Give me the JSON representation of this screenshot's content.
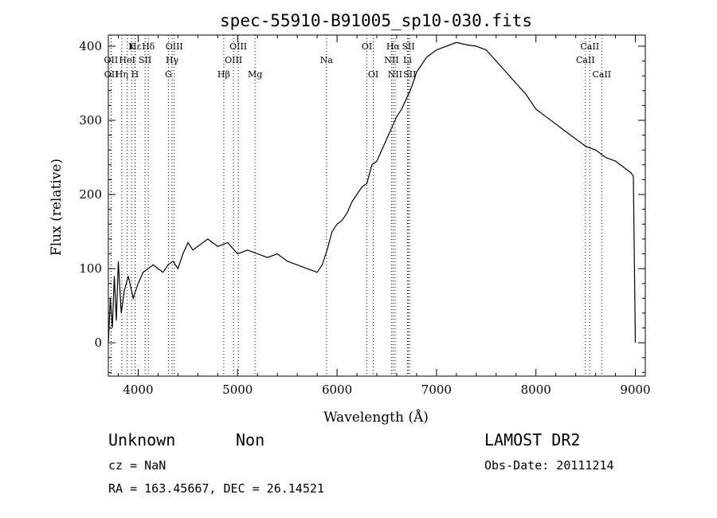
{
  "chart_data": {
    "type": "line",
    "title": "spec-55910-B91005_sp10-030.fits",
    "xlabel": "Wavelength (Å)",
    "ylabel": "Flux (relative)",
    "xlim": [
      3700,
      9100
    ],
    "ylim": [
      -45,
      415
    ],
    "xticks": [
      4000,
      5000,
      6000,
      7000,
      8000,
      9000
    ],
    "yticks": [
      0,
      100,
      200,
      300,
      400
    ],
    "grid": false,
    "series": [
      {
        "color": "#000000",
        "x": [
          3700,
          3720,
          3740,
          3760,
          3780,
          3800,
          3830,
          3860,
          3900,
          3950,
          4000,
          4050,
          4100,
          4150,
          4200,
          4250,
          4300,
          4350,
          4400,
          4450,
          4500,
          4550,
          4600,
          4700,
          4800,
          4900,
          5000,
          5100,
          5200,
          5300,
          5400,
          5500,
          5600,
          5700,
          5800,
          5850,
          5900,
          5950,
          6000,
          6050,
          6100,
          6150,
          6200,
          6250,
          6300,
          6350,
          6400,
          6450,
          6500,
          6550,
          6600,
          6650,
          6700,
          6750,
          6800,
          6900,
          7000,
          7100,
          7200,
          7300,
          7400,
          7500,
          7600,
          7700,
          7800,
          7900,
          8000,
          8100,
          8200,
          8300,
          8400,
          8500,
          8600,
          8700,
          8800,
          8900,
          8950,
          8980,
          9000
        ],
        "y": [
          0,
          60,
          20,
          90,
          30,
          110,
          40,
          70,
          90,
          60,
          80,
          95,
          100,
          105,
          100,
          95,
          105,
          110,
          100,
          120,
          135,
          125,
          130,
          140,
          130,
          135,
          120,
          125,
          120,
          115,
          120,
          110,
          105,
          100,
          95,
          105,
          125,
          150,
          160,
          165,
          175,
          190,
          200,
          210,
          215,
          240,
          245,
          260,
          275,
          290,
          305,
          315,
          330,
          345,
          365,
          385,
          395,
          400,
          405,
          402,
          400,
          395,
          380,
          365,
          350,
          335,
          315,
          305,
          295,
          285,
          275,
          265,
          260,
          250,
          245,
          235,
          230,
          225,
          0
        ]
      }
    ],
    "lines": [
      {
        "label": "Hε",
        "x": 3970,
        "color": "#000000",
        "row": 0
      },
      {
        "label": "OII",
        "x": 3727,
        "color": "#000000",
        "row": 1
      },
      {
        "label": "OII",
        "x": 3729,
        "color": "#000000",
        "row": 2
      },
      {
        "label": "K",
        "x": 3934,
        "color": "#000000",
        "row": 0
      },
      {
        "label": "HeI",
        "x": 3889,
        "color": "#000000",
        "row": 1
      },
      {
        "label": "Hη",
        "x": 3835,
        "color": "#000000",
        "row": 2
      },
      {
        "label": "H",
        "x": 3968,
        "color": "#000000",
        "row": 2
      },
      {
        "label": "SII",
        "x": 4069,
        "color": "#000000",
        "row": 1
      },
      {
        "label": "Hδ",
        "x": 4102,
        "color": "#000000",
        "row": 0
      },
      {
        "label": "OIII",
        "x": 4363,
        "color": "#000000",
        "row": 0
      },
      {
        "label": "Hγ",
        "x": 4341,
        "color": "#000000",
        "row": 1
      },
      {
        "label": "G",
        "x": 4304,
        "color": "#000000",
        "row": 2
      },
      {
        "label": "Hβ",
        "x": 4861,
        "color": "#000000",
        "row": 2
      },
      {
        "label": "OIII",
        "x": 5007,
        "color": "#000000",
        "row": 0
      },
      {
        "label": "OIII",
        "x": 4959,
        "color": "#000000",
        "row": 1
      },
      {
        "label": "Mg",
        "x": 5175,
        "color": "#000000",
        "row": 2
      },
      {
        "label": "Na",
        "x": 5894,
        "color": "#000000",
        "row": 1
      },
      {
        "label": "OI",
        "x": 6300,
        "color": "#000000",
        "row": 0
      },
      {
        "label": "OI",
        "x": 6364,
        "color": "#000000",
        "row": 2
      },
      {
        "label": "Hα",
        "x": 6563,
        "color": "#000000",
        "row": 0
      },
      {
        "label": "SII",
        "x": 6717,
        "color": "#000000",
        "row": 0
      },
      {
        "label": "NII",
        "x": 6548,
        "color": "#000000",
        "row": 1
      },
      {
        "label": "Li",
        "x": 6708,
        "color": "#000000",
        "row": 1
      },
      {
        "label": "NII",
        "x": 6584,
        "color": "#000000",
        "row": 2
      },
      {
        "label": "SII",
        "x": 6731,
        "color": "#000000",
        "row": 2
      },
      {
        "label": "CaII",
        "x": 8498,
        "color": "#000000",
        "row": 1
      },
      {
        "label": "CaII",
        "x": 8542,
        "color": "#000000",
        "row": 0
      },
      {
        "label": "CaII",
        "x": 8662,
        "color": "#000000",
        "row": 2
      }
    ]
  },
  "info": {
    "classification": "Unknown",
    "subclass": "Non",
    "survey": "LAMOST DR2",
    "cz": "cz = NaN",
    "obs_date": "Obs-Date: 20111214",
    "coords": "RA = 163.45667, DEC =  26.14521"
  }
}
